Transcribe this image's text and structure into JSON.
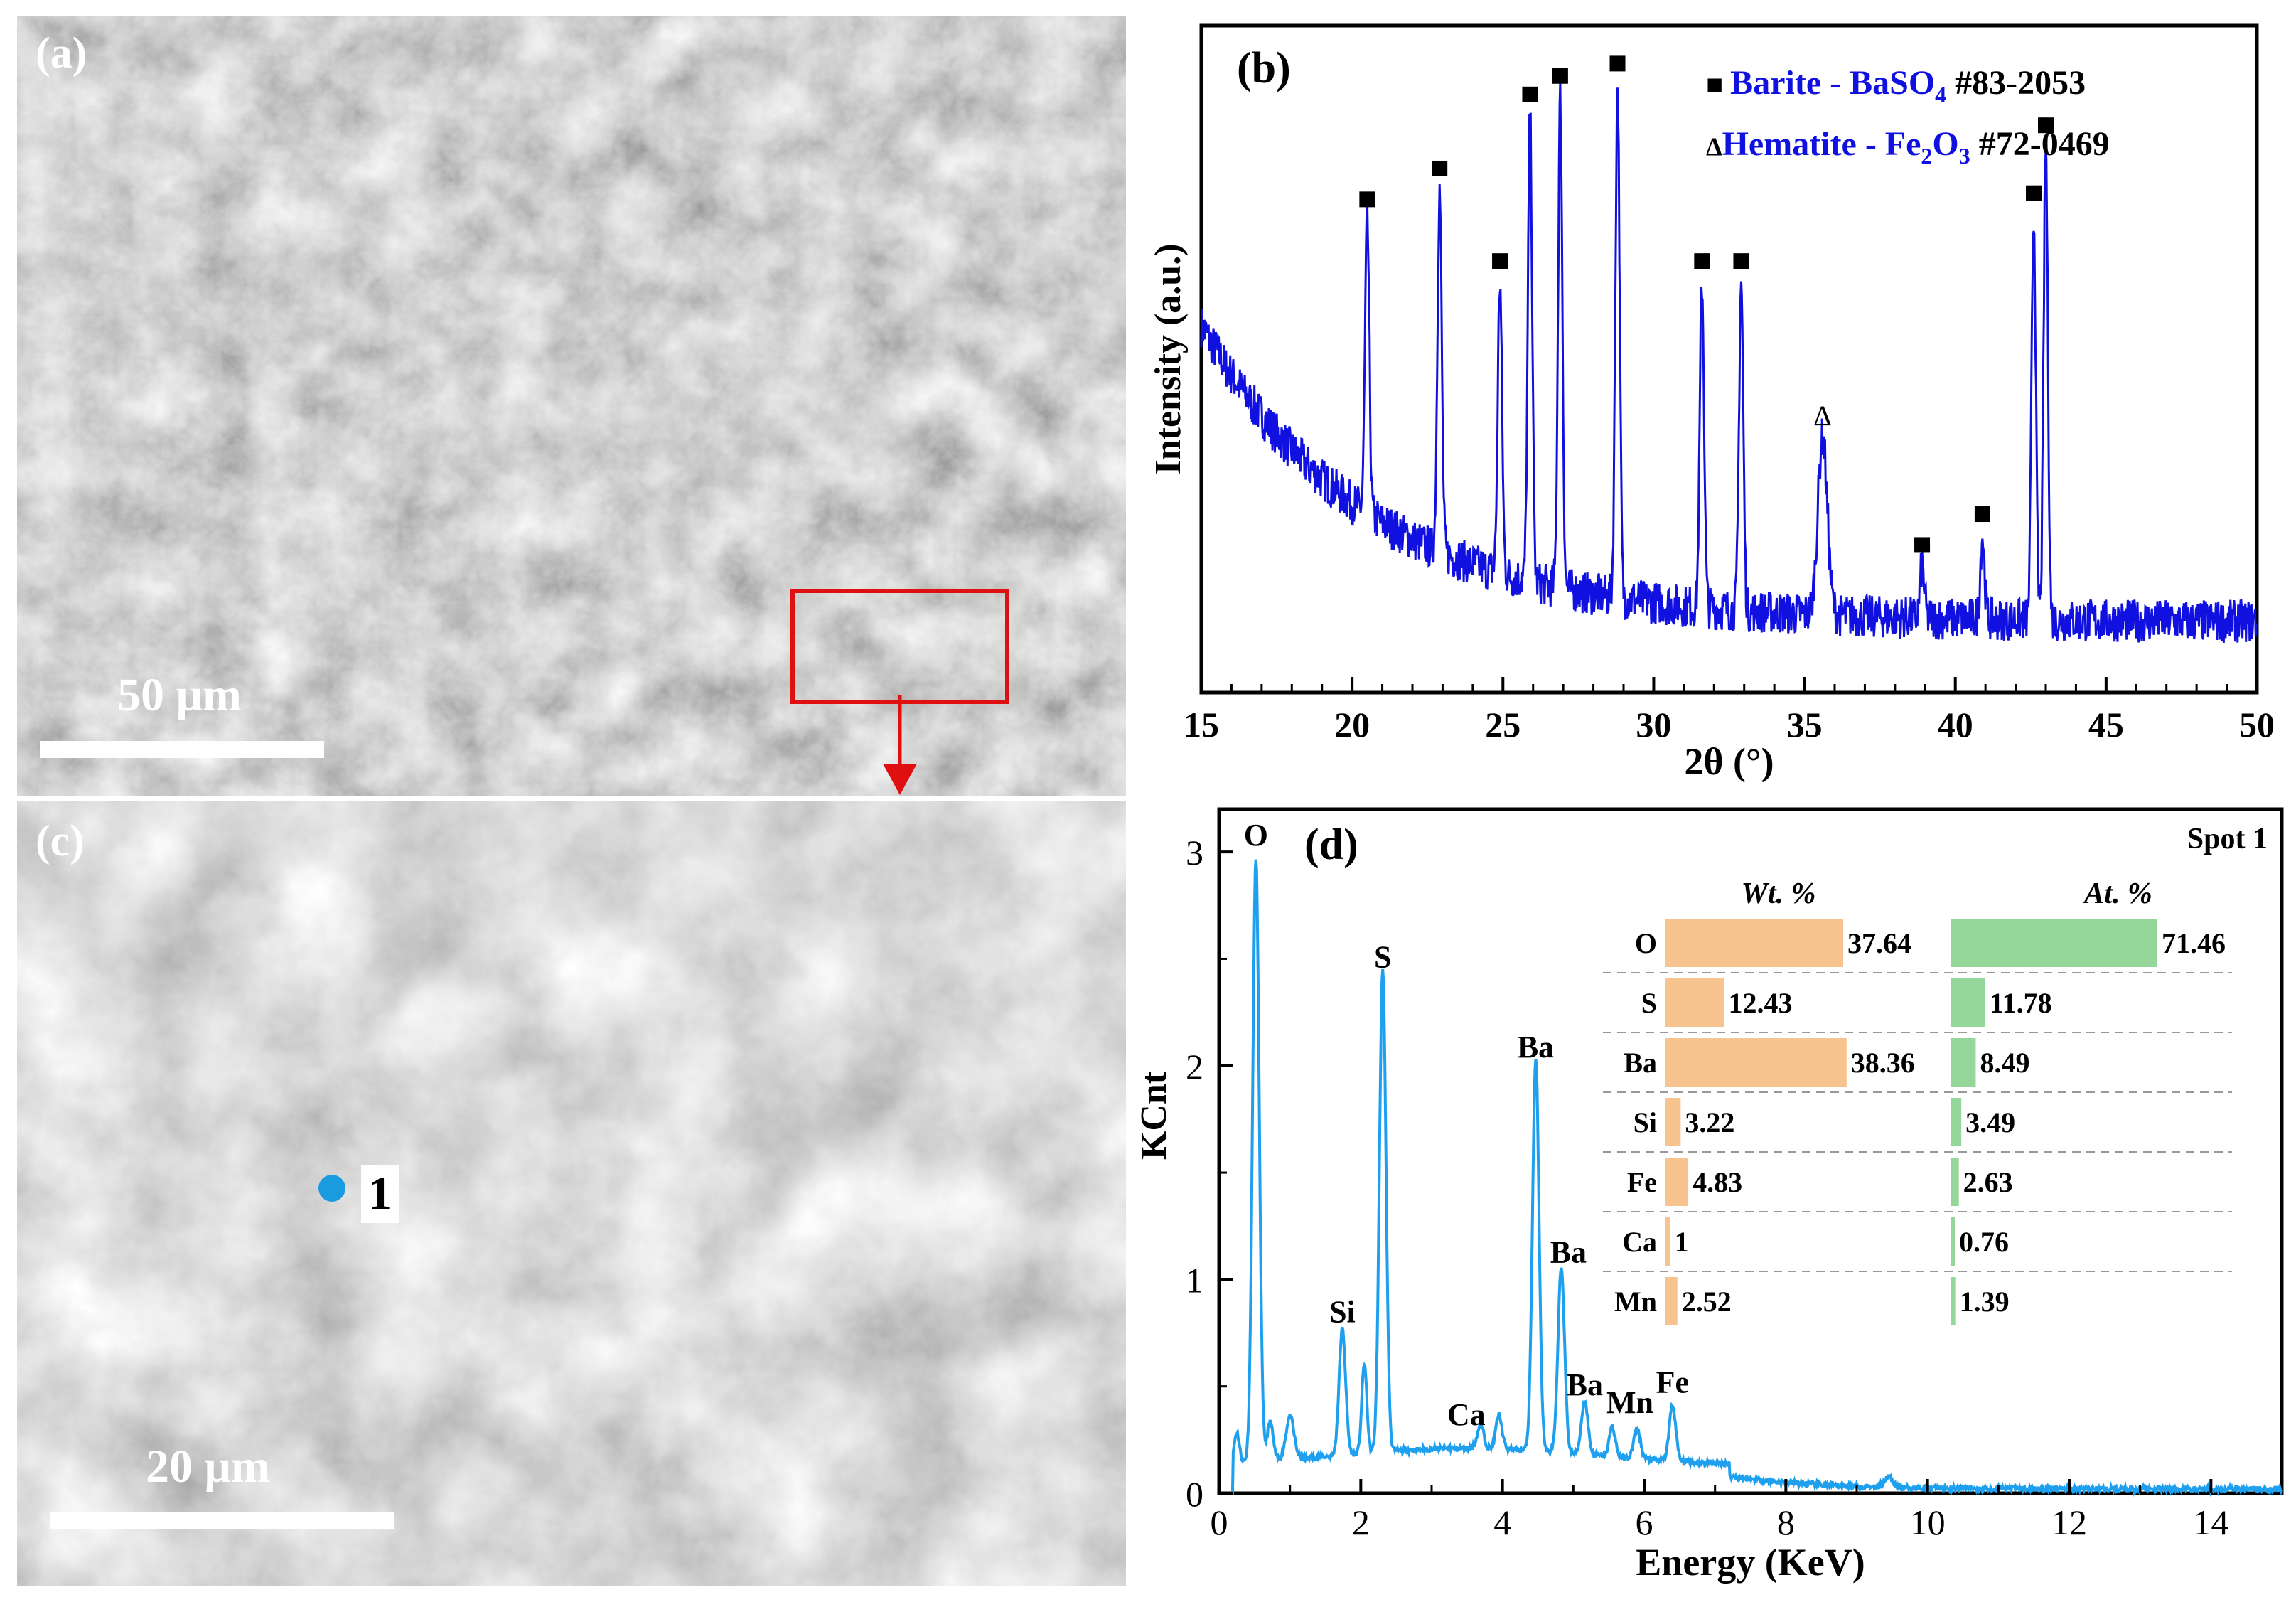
{
  "panel_a": {
    "label": "(a)",
    "scale_bar": "50 μm"
  },
  "panel_c": {
    "label": "(c)",
    "scale_bar": "20 μm",
    "spot_label": "1",
    "spot_color": "#1a9be0"
  },
  "chart_data": [
    {
      "type": "line",
      "panel_label": "(b)",
      "xlabel": "2θ (°)",
      "ylabel": "Intensity (a.u.)",
      "xlim": [
        15,
        50
      ],
      "xticks": [
        15,
        20,
        25,
        30,
        35,
        40,
        45,
        50
      ],
      "series_color": "#1010e0",
      "legend": [
        {
          "marker": "■",
          "name": "Barite - BaSO",
          "sub": "4",
          "ref": "#83-2053"
        },
        {
          "marker": "Δ",
          "name": "Hematite - Fe",
          "sub": "2",
          "name2": "O",
          "sub2": "3",
          "ref": "#72-0469"
        }
      ],
      "barite_peaks": [
        20.5,
        22.9,
        24.9,
        25.9,
        26.9,
        28.8,
        31.6,
        32.9,
        38.9,
        40.9,
        42.6,
        43.0
      ],
      "hematite_peaks": [
        35.6
      ],
      "peak_intensity": [
        0.73,
        0.78,
        0.63,
        0.9,
        0.93,
        0.95,
        0.63,
        0.63,
        0.17,
        0.22,
        0.74,
        0.85,
        0.38
      ]
    },
    {
      "type": "line",
      "panel_label": "(d)",
      "annotation": "Spot 1",
      "xlabel": "Energy (KeV)",
      "ylabel": "KCnt",
      "xlim": [
        0,
        15
      ],
      "ylim": [
        0,
        3.2
      ],
      "xticks": [
        0,
        2,
        4,
        6,
        8,
        10,
        12,
        14
      ],
      "yticks": [
        0,
        1,
        2,
        3
      ],
      "series_color": "#1ea0ee",
      "peaks": [
        {
          "label": "O",
          "x": 0.52,
          "y": 2.97
        },
        {
          "label": "Si",
          "x": 1.74,
          "y": 0.74
        },
        {
          "label": "S",
          "x": 2.31,
          "y": 2.4
        },
        {
          "label": "Ca",
          "x": 3.69,
          "y": 0.26
        },
        {
          "label": "Ba",
          "x": 4.47,
          "y": 1.98
        },
        {
          "label": "Ba",
          "x": 4.83,
          "y": 1.02
        },
        {
          "label": "Ba",
          "x": 5.16,
          "y": 0.4
        },
        {
          "label": "Mn",
          "x": 5.9,
          "y": 0.29
        },
        {
          "label": "Fe",
          "x": 6.4,
          "y": 0.41
        }
      ],
      "inset_table": {
        "headers": [
          "Wt. %",
          "At. %"
        ],
        "wt_color": "#f7c48f",
        "at_color": "#95d69a",
        "rows": [
          {
            "element": "O",
            "wt": 37.64,
            "at": 71.46,
            "wt_label": "37.64",
            "at_label": "71.46"
          },
          {
            "element": "S",
            "wt": 12.43,
            "at": 11.78,
            "wt_label": "12.43",
            "at_label": "11.78"
          },
          {
            "element": "Ba",
            "wt": 38.36,
            "at": 8.49,
            "wt_label": "38.36",
            "at_label": "8.49"
          },
          {
            "element": "Si",
            "wt": 3.22,
            "at": 3.49,
            "wt_label": "3.22",
            "at_label": "3.49"
          },
          {
            "element": "Fe",
            "wt": 4.83,
            "at": 2.63,
            "wt_label": "4.83",
            "at_label": "2.63"
          },
          {
            "element": "Ca",
            "wt": 1,
            "at": 0.76,
            "wt_label": "1",
            "at_label": "0.76"
          },
          {
            "element": "Mn",
            "wt": 2.52,
            "at": 1.39,
            "wt_label": "2.52",
            "at_label": "1.39"
          }
        ]
      }
    }
  ]
}
